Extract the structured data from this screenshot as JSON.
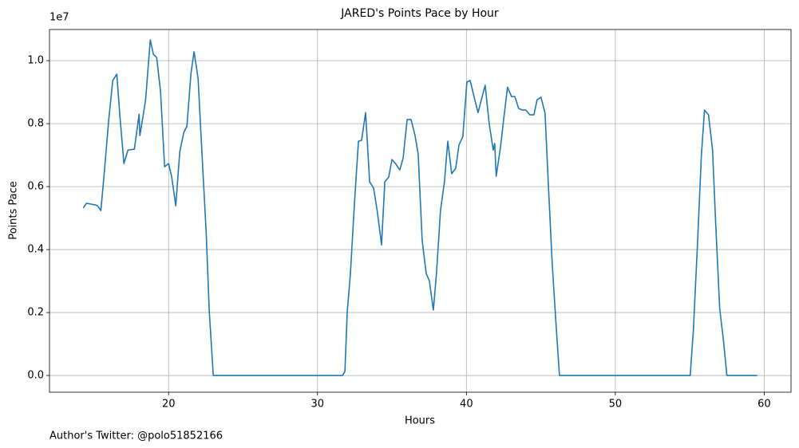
{
  "chart_data": {
    "type": "line",
    "title": "JARED's Points Pace by Hour",
    "x_label": "Hours",
    "y_label": "Points Pace",
    "y_offset_label": "1e7",
    "footer": "Author's Twitter: @polo51852166",
    "grid": true,
    "xlim": [
      12.0,
      61.8
    ],
    "ylim": [
      -0.053,
      1.099
    ],
    "xticks": [
      20,
      30,
      40,
      50,
      60
    ],
    "yticks": [
      {
        "value": 0,
        "label": "0.0"
      },
      {
        "value": 0.2,
        "label": "0.2"
      },
      {
        "value": 0.4,
        "label": "0.4"
      },
      {
        "value": 0.6,
        "label": "0.6"
      },
      {
        "value": 0.8,
        "label": "0.8"
      },
      {
        "value": 1,
        "label": "1.0"
      }
    ],
    "x": [
      14.27,
      14.48,
      15.07,
      15.23,
      15.45,
      15.66,
      15.98,
      16.25,
      16.52,
      16.73,
      17.0,
      17.27,
      17.7,
      18.02,
      18.07,
      18.45,
      18.77,
      18.98,
      19.2,
      19.46,
      19.73,
      20.0,
      20.21,
      20.48,
      20.75,
      21.02,
      21.23,
      21.5,
      21.71,
      21.98,
      22.25,
      22.52,
      22.73,
      23.0,
      31.68,
      31.84,
      32.0,
      32.21,
      32.48,
      32.75,
      32.96,
      33.23,
      33.5,
      33.77,
      34.03,
      34.3,
      34.52,
      34.78,
      35.0,
      35.27,
      35.53,
      35.75,
      36.02,
      36.28,
      36.55,
      36.76,
      37.03,
      37.3,
      37.51,
      37.78,
      37.99,
      38.26,
      38.53,
      38.75,
      39.01,
      39.28,
      39.5,
      39.76,
      40.03,
      40.25,
      40.51,
      40.78,
      40.99,
      41.26,
      41.53,
      41.8,
      41.9,
      42.0,
      42.28,
      42.5,
      42.76,
      43.03,
      43.25,
      43.51,
      43.78,
      43.99,
      44.26,
      44.53,
      44.75,
      45.01,
      45.28,
      45.5,
      45.76,
      46.03,
      46.25,
      55.03,
      55.24,
      55.51,
      55.78,
      55.99,
      56.26,
      56.53,
      56.74,
      57.01,
      57.28,
      57.49,
      59.53
    ],
    "series": [
      {
        "name": "Points Pace",
        "color": "#1f77b4",
        "values": [
          0.532,
          0.547,
          0.542,
          0.539,
          0.524,
          0.633,
          0.813,
          0.937,
          0.957,
          0.823,
          0.673,
          0.716,
          0.719,
          0.83,
          0.762,
          0.873,
          1.066,
          1.02,
          1.01,
          0.901,
          0.663,
          0.673,
          0.63,
          0.539,
          0.711,
          0.772,
          0.792,
          0.959,
          1.028,
          0.944,
          0.696,
          0.458,
          0.205,
          0,
          0,
          0.013,
          0.205,
          0.324,
          0.547,
          0.744,
          0.747,
          0.835,
          0.615,
          0.595,
          0.516,
          0.415,
          0.615,
          0.63,
          0.686,
          0.671,
          0.653,
          0.691,
          0.813,
          0.813,
          0.762,
          0.704,
          0.428,
          0.324,
          0.301,
          0.208,
          0.324,
          0.524,
          0.618,
          0.744,
          0.641,
          0.658,
          0.732,
          0.759,
          0.932,
          0.937,
          0.886,
          0.835,
          0.873,
          0.922,
          0.8,
          0.716,
          0.737,
          0.633,
          0.722,
          0.813,
          0.916,
          0.886,
          0.886,
          0.848,
          0.843,
          0.843,
          0.828,
          0.828,
          0.876,
          0.884,
          0.833,
          0.61,
          0.357,
          0.154,
          0,
          0,
          0.142,
          0.408,
          0.699,
          0.843,
          0.828,
          0.716,
          0.484,
          0.213,
          0.104,
          0,
          0
        ]
      }
    ]
  }
}
